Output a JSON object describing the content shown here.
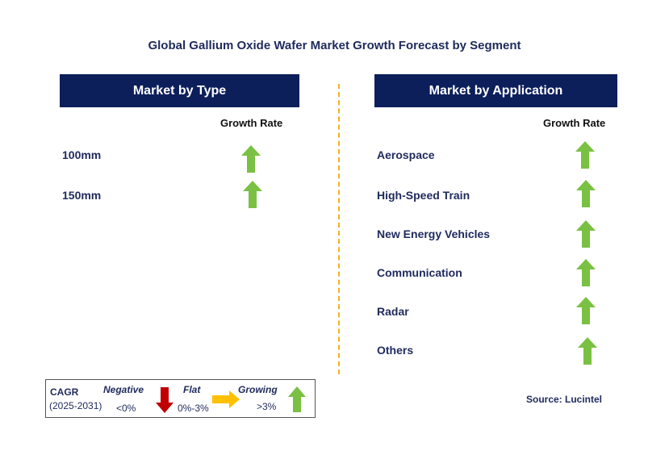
{
  "title": "Global Gallium Oxide Wafer Market Growth Forecast by Segment",
  "type_panel": {
    "header": "Market by Type",
    "column_label": "Growth Rate",
    "items": [
      {
        "label": "100mm",
        "trend": "growing"
      },
      {
        "label": "150mm",
        "trend": "growing"
      }
    ]
  },
  "application_panel": {
    "header": "Market by Application",
    "column_label": "Growth Rate",
    "items": [
      {
        "label": "Aerospace",
        "trend": "growing"
      },
      {
        "label": "High-Speed Train",
        "trend": "growing"
      },
      {
        "label": "New Energy Vehicles",
        "trend": "growing"
      },
      {
        "label": "Communication",
        "trend": "growing"
      },
      {
        "label": "Radar",
        "trend": "growing"
      },
      {
        "label": "Others",
        "trend": "growing"
      }
    ]
  },
  "legend": {
    "cagr_label": "CAGR",
    "period": "(2025-2031)",
    "negative": {
      "title": "Negative",
      "range": "<0%"
    },
    "flat": {
      "title": "Flat",
      "range": "0%-3%"
    },
    "growing": {
      "title": "Growing",
      "range": ">3%"
    }
  },
  "source": "Source: Lucintel",
  "colors": {
    "header_bg": "#0c1f5b",
    "growing": "#7ac143",
    "negative": "#c00000",
    "flat": "#ffc000",
    "divider": "#f5b21a"
  }
}
